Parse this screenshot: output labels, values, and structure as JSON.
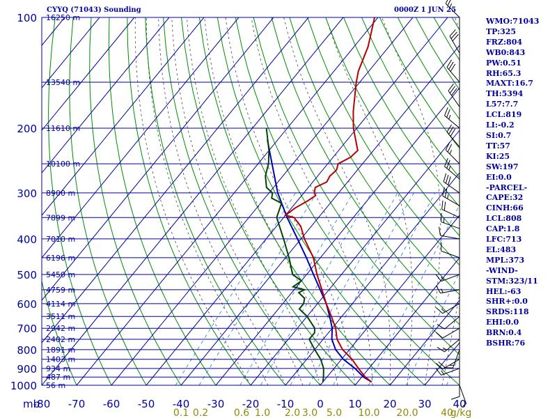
{
  "header": {
    "station": "CYYQ (71043) Sounding",
    "datetime": "0000Z  1 JUN 25"
  },
  "chart_data": {
    "type": "skew-t",
    "x_axis_unit": "mb",
    "temperature_ticks": [
      "-80",
      "-70",
      "-60",
      "-50",
      "-40",
      "-30",
      "-20",
      "-10",
      "0",
      "10",
      "20",
      "30",
      "40"
    ],
    "mixing_ratio_labels": [
      "0.1",
      "0.2",
      "0.6",
      "1.0",
      "2.0",
      "3.0",
      "5.0",
      "10.0",
      "20.0",
      "40",
      "g/kg"
    ],
    "pressure_levels": [
      {
        "p": 100,
        "label": "100",
        "height": "16250 m"
      },
      {
        "p": 150,
        "label": "",
        "height": "13540 m"
      },
      {
        "p": 200,
        "label": "200",
        "height": "11610 m"
      },
      {
        "p": 250,
        "label": "",
        "height": "10100 m"
      },
      {
        "p": 300,
        "label": "300",
        "height": "8900 m"
      },
      {
        "p": 350,
        "label": "",
        "height": "7899 m"
      },
      {
        "p": 400,
        "label": "400",
        "height": "7010 m"
      },
      {
        "p": 450,
        "label": "",
        "height": "6196 m"
      },
      {
        "p": 500,
        "label": "500",
        "height": "5450 m"
      },
      {
        "p": 550,
        "label": "",
        "height": "4759 m"
      },
      {
        "p": 600,
        "label": "600",
        "height": "4114 m"
      },
      {
        "p": 650,
        "label": "",
        "height": "3511 m"
      },
      {
        "p": 700,
        "label": "700",
        "height": "2942 m"
      },
      {
        "p": 750,
        "label": "",
        "height": "2402 m"
      },
      {
        "p": 800,
        "label": "800",
        "height": "1891 m"
      },
      {
        "p": 850,
        "label": "",
        "height": "1403 m"
      },
      {
        "p": 900,
        "label": "900",
        "height": "934 m"
      },
      {
        "p": 950,
        "label": "",
        "height": "487 m"
      },
      {
        "p": 1000,
        "label": "1000",
        "height": "56 m"
      }
    ],
    "temperature": [
      [
        980,
        14
      ],
      [
        950,
        11
      ],
      [
        900,
        7
      ],
      [
        850,
        3
      ],
      [
        800,
        -2
      ],
      [
        750,
        -6
      ],
      [
        700,
        -9
      ],
      [
        650,
        -13
      ],
      [
        600,
        -17.5
      ],
      [
        550,
        -22
      ],
      [
        500,
        -27
      ],
      [
        450,
        -32
      ],
      [
        400,
        -39
      ],
      [
        370,
        -43
      ],
      [
        350,
        -47
      ],
      [
        345,
        -50
      ],
      [
        330,
        -49
      ],
      [
        315,
        -47
      ],
      [
        305,
        -46
      ],
      [
        300,
        -47
      ],
      [
        290,
        -48
      ],
      [
        280,
        -46
      ],
      [
        270,
        -46.5
      ],
      [
        260,
        -46
      ],
      [
        250,
        -47
      ],
      [
        240,
        -45
      ],
      [
        230,
        -44.5
      ],
      [
        200,
        -51
      ],
      [
        180,
        -55
      ],
      [
        150,
        -61
      ],
      [
        140,
        -63
      ],
      [
        120,
        -66
      ],
      [
        100,
        -71
      ]
    ],
    "dewpoint": [
      [
        980,
        0
      ],
      [
        950,
        -1
      ],
      [
        900,
        -3
      ],
      [
        850,
        -6
      ],
      [
        800,
        -10
      ],
      [
        750,
        -14
      ],
      [
        720,
        -14
      ],
      [
        700,
        -15
      ],
      [
        650,
        -20
      ],
      [
        620,
        -24
      ],
      [
        600,
        -24
      ],
      [
        580,
        -25
      ],
      [
        560,
        -28
      ],
      [
        550,
        -27
      ],
      [
        540,
        -31
      ],
      [
        520,
        -30
      ],
      [
        510,
        -32
      ],
      [
        500,
        -34
      ],
      [
        450,
        -39
      ],
      [
        400,
        -45
      ],
      [
        350,
        -52
      ],
      [
        320,
        -54
      ],
      [
        310,
        -58
      ],
      [
        300,
        -59
      ],
      [
        290,
        -62
      ],
      [
        270,
        -65
      ],
      [
        260,
        -66
      ],
      [
        250,
        -67
      ],
      [
        230,
        -70
      ],
      [
        200,
        -76
      ]
    ],
    "parcel": [
      [
        980,
        14
      ],
      [
        950,
        10.5
      ],
      [
        900,
        6
      ],
      [
        850,
        0.5
      ],
      [
        800,
        -4
      ],
      [
        750,
        -7.5
      ],
      [
        700,
        -10
      ],
      [
        650,
        -13.5
      ],
      [
        600,
        -17.5
      ],
      [
        550,
        -22.5
      ],
      [
        500,
        -28
      ],
      [
        450,
        -34
      ],
      [
        400,
        -41
      ],
      [
        350,
        -49
      ],
      [
        300,
        -57.5
      ],
      [
        250,
        -66
      ],
      [
        215,
        -73
      ]
    ],
    "wind": [
      {
        "p": 100,
        "dir": 315,
        "spd": 25
      },
      {
        "p": 125,
        "dir": 330,
        "spd": 30
      },
      {
        "p": 150,
        "dir": 320,
        "spd": 30
      },
      {
        "p": 175,
        "dir": 325,
        "spd": 30
      },
      {
        "p": 200,
        "dir": 310,
        "spd": 25
      },
      {
        "p": 225,
        "dir": 320,
        "spd": 30
      },
      {
        "p": 250,
        "dir": 315,
        "spd": 25
      },
      {
        "p": 275,
        "dir": 310,
        "spd": 25
      },
      {
        "p": 300,
        "dir": 305,
        "spd": 30
      },
      {
        "p": 325,
        "dir": 300,
        "spd": 25
      },
      {
        "p": 350,
        "dir": 295,
        "spd": 20
      },
      {
        "p": 375,
        "dir": 290,
        "spd": 15
      },
      {
        "p": 400,
        "dir": 280,
        "spd": 10
      },
      {
        "p": 450,
        "dir": 290,
        "spd": 10
      },
      {
        "p": 500,
        "dir": 250,
        "spd": 15
      },
      {
        "p": 550,
        "dir": 260,
        "spd": 15
      },
      {
        "p": 600,
        "dir": 240,
        "spd": 15
      },
      {
        "p": 650,
        "dir": 230,
        "spd": 10
      },
      {
        "p": 700,
        "dir": 240,
        "spd": 10
      },
      {
        "p": 750,
        "dir": 230,
        "spd": 15
      },
      {
        "p": 800,
        "dir": 200,
        "spd": 15
      },
      {
        "p": 850,
        "dir": 240,
        "spd": 20
      },
      {
        "p": 900,
        "dir": 250,
        "spd": 15
      },
      {
        "p": 950,
        "dir": 180,
        "spd": 10
      },
      {
        "p": 1000,
        "dir": 160,
        "spd": 5
      }
    ]
  },
  "indices": [
    "WMO:71043",
    "TP:325",
    "FRZ:804",
    "WB0:843",
    "PW:0.51",
    "RH:65.3",
    "MAXT:16.7",
    "TH:5394",
    "L57:7.7",
    "LCL:819",
    "LI:-0.2",
    "SI:0.7",
    "TT:57",
    "KI:25",
    "SW:197",
    "EI:0.0",
    "-PARCEL-",
    "CAPE:32",
    "CINH:66",
    "LCL:808",
    "CAP:1.8",
    "LFC:713",
    "EL:483",
    "MPL:373",
    "-WIND-",
    "STM:323/11",
    "HEL:-63",
    "SHR+:0.0",
    "SRDS:118",
    "EHI:0.0",
    "BRN:0.4",
    "BSHR:76"
  ],
  "colors": {
    "grid": "#0000a0",
    "isotherm": "#0000a0",
    "dry_adiabat": "#008c00",
    "moist_adiabat": "#404040",
    "mixing_ratio": "#1e78d2",
    "temperature": "#b40000",
    "dewpoint": "#004600",
    "parcel": "#0000b4",
    "label": "#0000a0",
    "mixlabel": "#8c8c00",
    "wind": "#000000"
  }
}
